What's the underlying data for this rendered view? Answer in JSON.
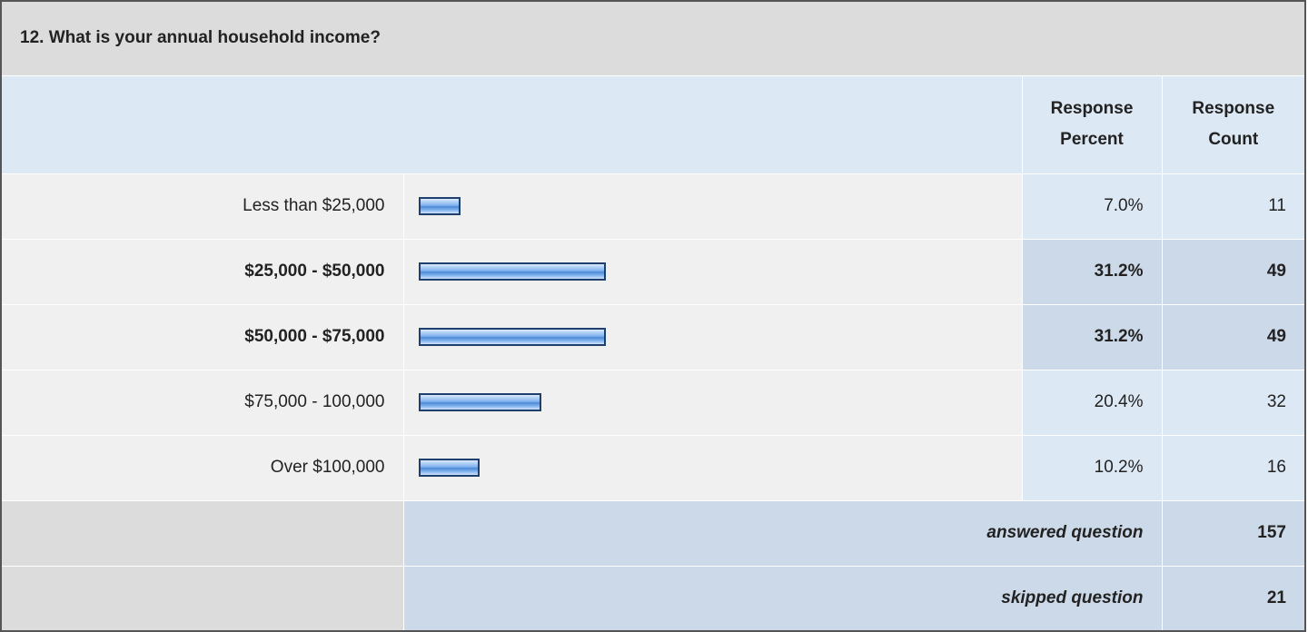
{
  "chart_data": {
    "type": "bar",
    "title": "12. What is your annual household income?",
    "columns": [
      "Response Percent",
      "Response Count"
    ],
    "categories": [
      "Less than $25,000",
      "$25,000 - $50,000",
      "$50,000 - $75,000",
      "$75,000 - 100,000",
      "Over $100,000"
    ],
    "values": [
      7.0,
      31.2,
      31.2,
      20.4,
      10.2
    ],
    "value_labels": [
      "7.0%",
      "31.2%",
      "31.2%",
      "20.4%",
      "10.2%"
    ],
    "counts": [
      11,
      49,
      49,
      32,
      16
    ],
    "highlighted": [
      false,
      true,
      true,
      false,
      false
    ],
    "xlim": [
      0,
      100
    ],
    "color": "#7fb2ee",
    "answered": {
      "label": "answered question",
      "value": 157
    },
    "skipped": {
      "label": "skipped question",
      "value": 21
    }
  }
}
